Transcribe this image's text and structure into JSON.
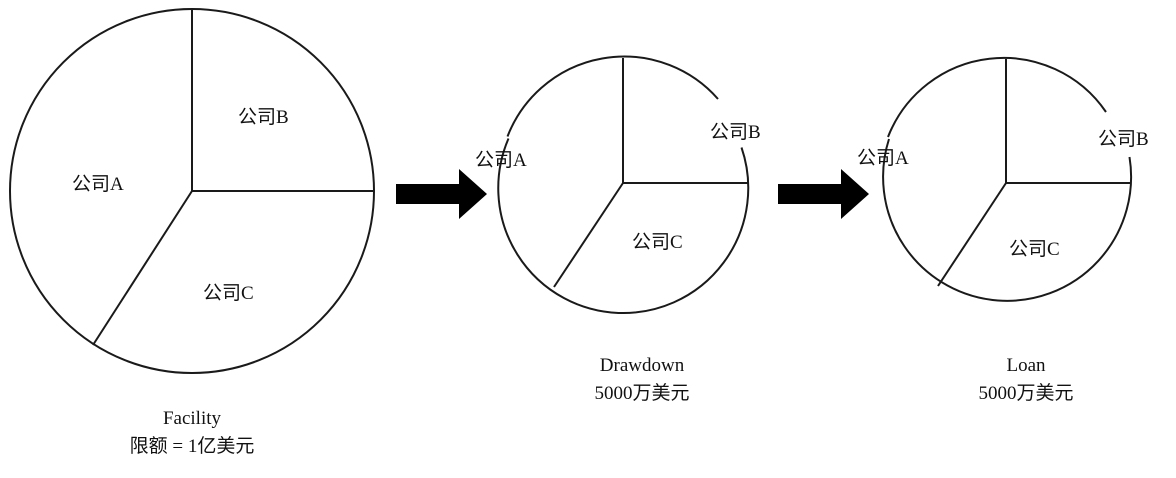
{
  "diagram": {
    "panels": [
      {
        "id": "facility",
        "segments": [
          {
            "key": "A",
            "label": "公司A"
          },
          {
            "key": "B",
            "label": "公司B"
          },
          {
            "key": "C",
            "label": "公司C"
          }
        ],
        "caption": [
          "Facility",
          "限额 = 1亿美元"
        ]
      },
      {
        "id": "drawdown",
        "segments": [
          {
            "key": "A",
            "label": "公司A"
          },
          {
            "key": "B",
            "label": "公司B"
          },
          {
            "key": "C",
            "label": "公司C"
          }
        ],
        "caption": [
          "Drawdown",
          "5000万美元"
        ]
      },
      {
        "id": "loan",
        "segments": [
          {
            "key": "A",
            "label": "公司A"
          },
          {
            "key": "B",
            "label": "公司B"
          },
          {
            "key": "C",
            "label": "公司C"
          }
        ],
        "caption": [
          "Loan",
          "5000万美元"
        ]
      }
    ],
    "arrow_color": "#000000",
    "line_color": "#1a1a1a"
  }
}
